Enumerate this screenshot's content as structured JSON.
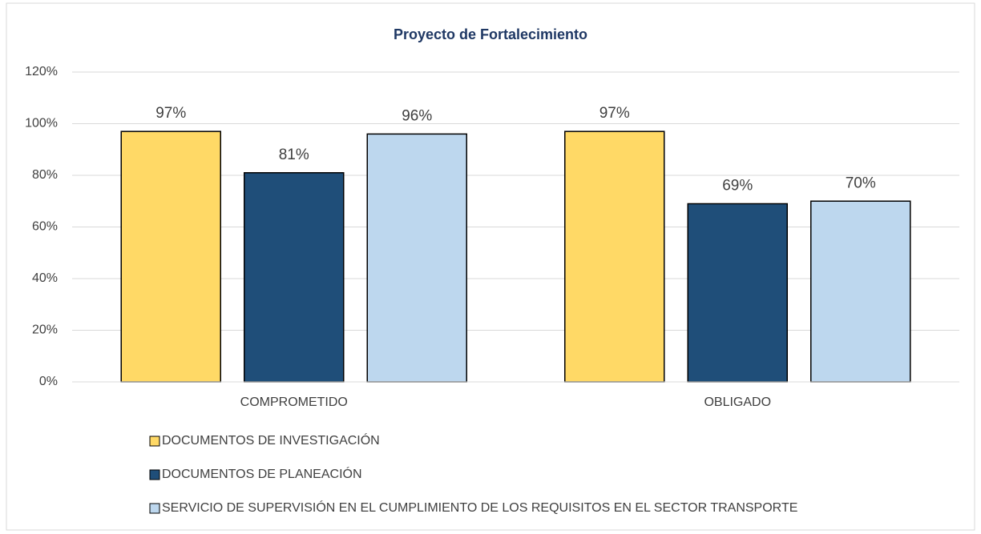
{
  "chart_data": {
    "type": "bar",
    "title": "Proyecto de Fortalecimiento",
    "categories": [
      "COMPROMETIDO",
      "OBLIGADO"
    ],
    "series": [
      {
        "name": "DOCUMENTOS DE INVESTIGACIÓN",
        "color": "#ffd966",
        "values": [
          97,
          97
        ],
        "value_labels": [
          "97%",
          "97%"
        ]
      },
      {
        "name": "DOCUMENTOS DE PLANEACIÓN",
        "color": "#1f4e79",
        "values": [
          81,
          69
        ],
        "value_labels": [
          "81%",
          "69%"
        ]
      },
      {
        "name": "SERVICIO DE SUPERVISIÓN EN EL CUMPLIMIENTO DE LOS REQUISITOS EN EL SECTOR TRANSPORTE",
        "color": "#bdd7ee",
        "values": [
          96,
          70
        ],
        "value_labels": [
          "96%",
          "70%"
        ]
      }
    ],
    "ylim": [
      0,
      120
    ],
    "yticks": [
      {
        "value": 0,
        "label": "0%"
      },
      {
        "value": 20,
        "label": "20%"
      },
      {
        "value": 40,
        "label": "40%"
      },
      {
        "value": 60,
        "label": "60%"
      },
      {
        "value": 80,
        "label": "80%"
      },
      {
        "value": 100,
        "label": "100%"
      },
      {
        "value": 120,
        "label": "120%"
      }
    ],
    "grid": true,
    "legend": "bottom"
  }
}
